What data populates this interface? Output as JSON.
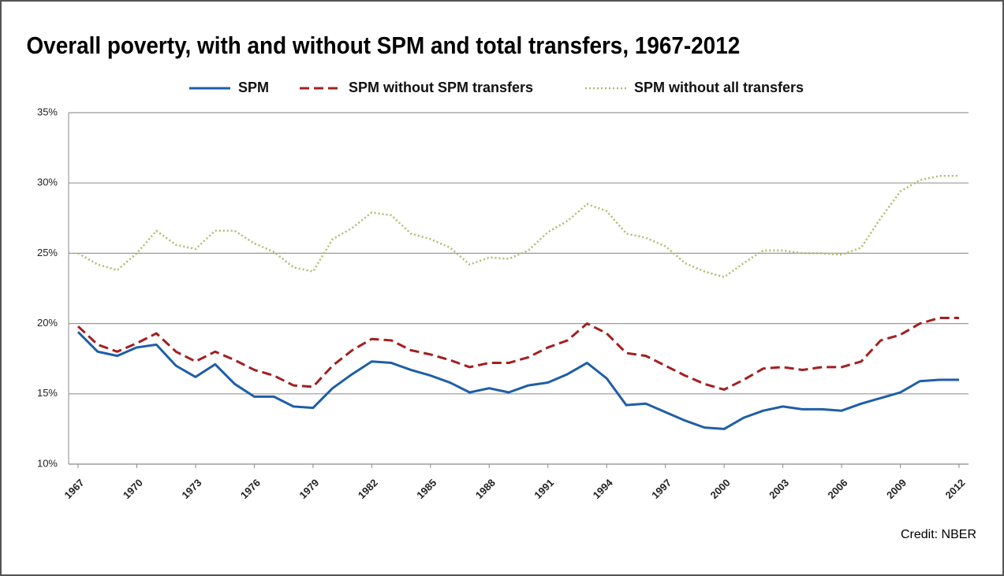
{
  "chart_data": {
    "type": "line",
    "title": "Overall poverty, with and without SPM and total transfers, 1967-2012",
    "credit": "Credit: NBER",
    "x": [
      1967,
      1968,
      1969,
      1970,
      1971,
      1972,
      1973,
      1974,
      1975,
      1976,
      1977,
      1978,
      1979,
      1980,
      1981,
      1982,
      1983,
      1984,
      1985,
      1986,
      1987,
      1988,
      1989,
      1990,
      1991,
      1992,
      1993,
      1994,
      1995,
      1996,
      1997,
      1998,
      1999,
      2000,
      2001,
      2002,
      2003,
      2004,
      2005,
      2006,
      2007,
      2008,
      2009,
      2010,
      2011,
      2012
    ],
    "xlim": [
      1967,
      2012
    ],
    "xticks": [
      1967,
      1970,
      1973,
      1976,
      1979,
      1982,
      1985,
      1988,
      1991,
      1994,
      1997,
      2000,
      2003,
      2006,
      2009,
      2012
    ],
    "ylim": [
      10,
      35
    ],
    "yticks": [
      {
        "value": 10,
        "label": "10%"
      },
      {
        "value": 15,
        "label": "15%"
      },
      {
        "value": 20,
        "label": "20%"
      },
      {
        "value": 25,
        "label": "25%"
      },
      {
        "value": 30,
        "label": "30%"
      },
      {
        "value": 35,
        "label": "35%"
      }
    ],
    "grid": true,
    "legend": "top",
    "series": [
      {
        "name": "SPM",
        "color": "#1f5ea8",
        "dash": "solid",
        "values": [
          19.4,
          18.0,
          17.7,
          18.3,
          18.5,
          17.0,
          16.2,
          17.1,
          15.7,
          14.8,
          14.8,
          14.1,
          14.0,
          15.4,
          16.4,
          17.3,
          17.2,
          16.7,
          16.3,
          15.8,
          15.1,
          15.4,
          15.1,
          15.6,
          15.8,
          16.4,
          17.2,
          16.1,
          14.2,
          14.3,
          13.7,
          13.1,
          12.6,
          12.5,
          13.3,
          13.8,
          14.1,
          13.9,
          13.9,
          13.8,
          14.3,
          14.7,
          15.1,
          15.9,
          16.0,
          16.0
        ]
      },
      {
        "name": "SPM without SPM transfers",
        "color": "#a31f1f",
        "dash": "dashed",
        "values": [
          19.8,
          18.5,
          18.0,
          18.6,
          19.3,
          18.0,
          17.3,
          18.0,
          17.4,
          16.7,
          16.3,
          15.6,
          15.5,
          17.0,
          18.1,
          18.9,
          18.8,
          18.1,
          17.8,
          17.4,
          16.9,
          17.2,
          17.2,
          17.6,
          18.3,
          18.8,
          20.0,
          19.3,
          17.9,
          17.7,
          17.0,
          16.3,
          15.7,
          15.3,
          16.0,
          16.8,
          16.9,
          16.7,
          16.9,
          16.9,
          17.3,
          18.8,
          19.2,
          20.0,
          20.4,
          20.4
        ]
      },
      {
        "name": "SPM without all transfers",
        "color": "#b5b96a",
        "dash": "dotted",
        "values": [
          25.0,
          24.2,
          23.8,
          25.0,
          26.6,
          25.6,
          25.3,
          26.6,
          26.6,
          25.7,
          25.1,
          24.0,
          23.7,
          26.0,
          26.8,
          27.9,
          27.7,
          26.4,
          26.0,
          25.4,
          24.2,
          24.7,
          24.6,
          25.2,
          26.5,
          27.3,
          28.5,
          28.0,
          26.4,
          26.1,
          25.5,
          24.3,
          23.7,
          23.3,
          24.3,
          25.2,
          25.2,
          25.0,
          25.0,
          24.9,
          25.4,
          27.5,
          29.4,
          30.2,
          30.5,
          30.5
        ]
      }
    ]
  }
}
